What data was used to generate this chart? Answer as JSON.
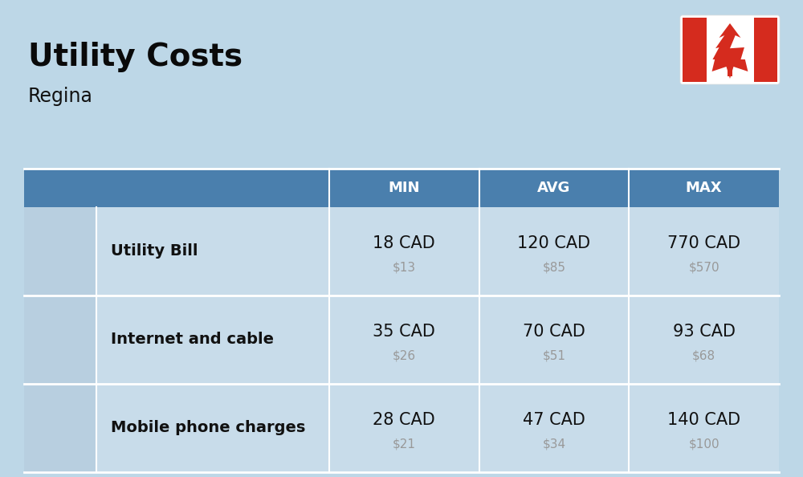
{
  "title": "Utility Costs",
  "subtitle": "Regina",
  "background_color": "#bdd7e7",
  "header_color": "#4a7fad",
  "header_text_color": "#ffffff",
  "row_color": "#c8dcea",
  "icon_col_color": "#b8cfe0",
  "separator_color": "#ffffff",
  "col_headers": [
    "MIN",
    "AVG",
    "MAX"
  ],
  "rows": [
    {
      "label": "Utility Bill",
      "min_cad": "18 CAD",
      "min_usd": "$13",
      "avg_cad": "120 CAD",
      "avg_usd": "$85",
      "max_cad": "770 CAD",
      "max_usd": "$570"
    },
    {
      "label": "Internet and cable",
      "min_cad": "35 CAD",
      "min_usd": "$26",
      "avg_cad": "70 CAD",
      "avg_usd": "$51",
      "max_cad": "93 CAD",
      "max_usd": "$68"
    },
    {
      "label": "Mobile phone charges",
      "min_cad": "28 CAD",
      "min_usd": "$21",
      "avg_cad": "47 CAD",
      "avg_usd": "$34",
      "max_cad": "140 CAD",
      "max_usd": "$100"
    }
  ],
  "flag_red": "#d52b1e",
  "flag_white": "#ffffff",
  "title_fontsize": 28,
  "subtitle_fontsize": 17,
  "header_fontsize": 13,
  "cad_fontsize": 15,
  "usd_fontsize": 11,
  "label_fontsize": 14,
  "usd_color": "#999999",
  "label_color": "#111111",
  "cad_color": "#111111"
}
